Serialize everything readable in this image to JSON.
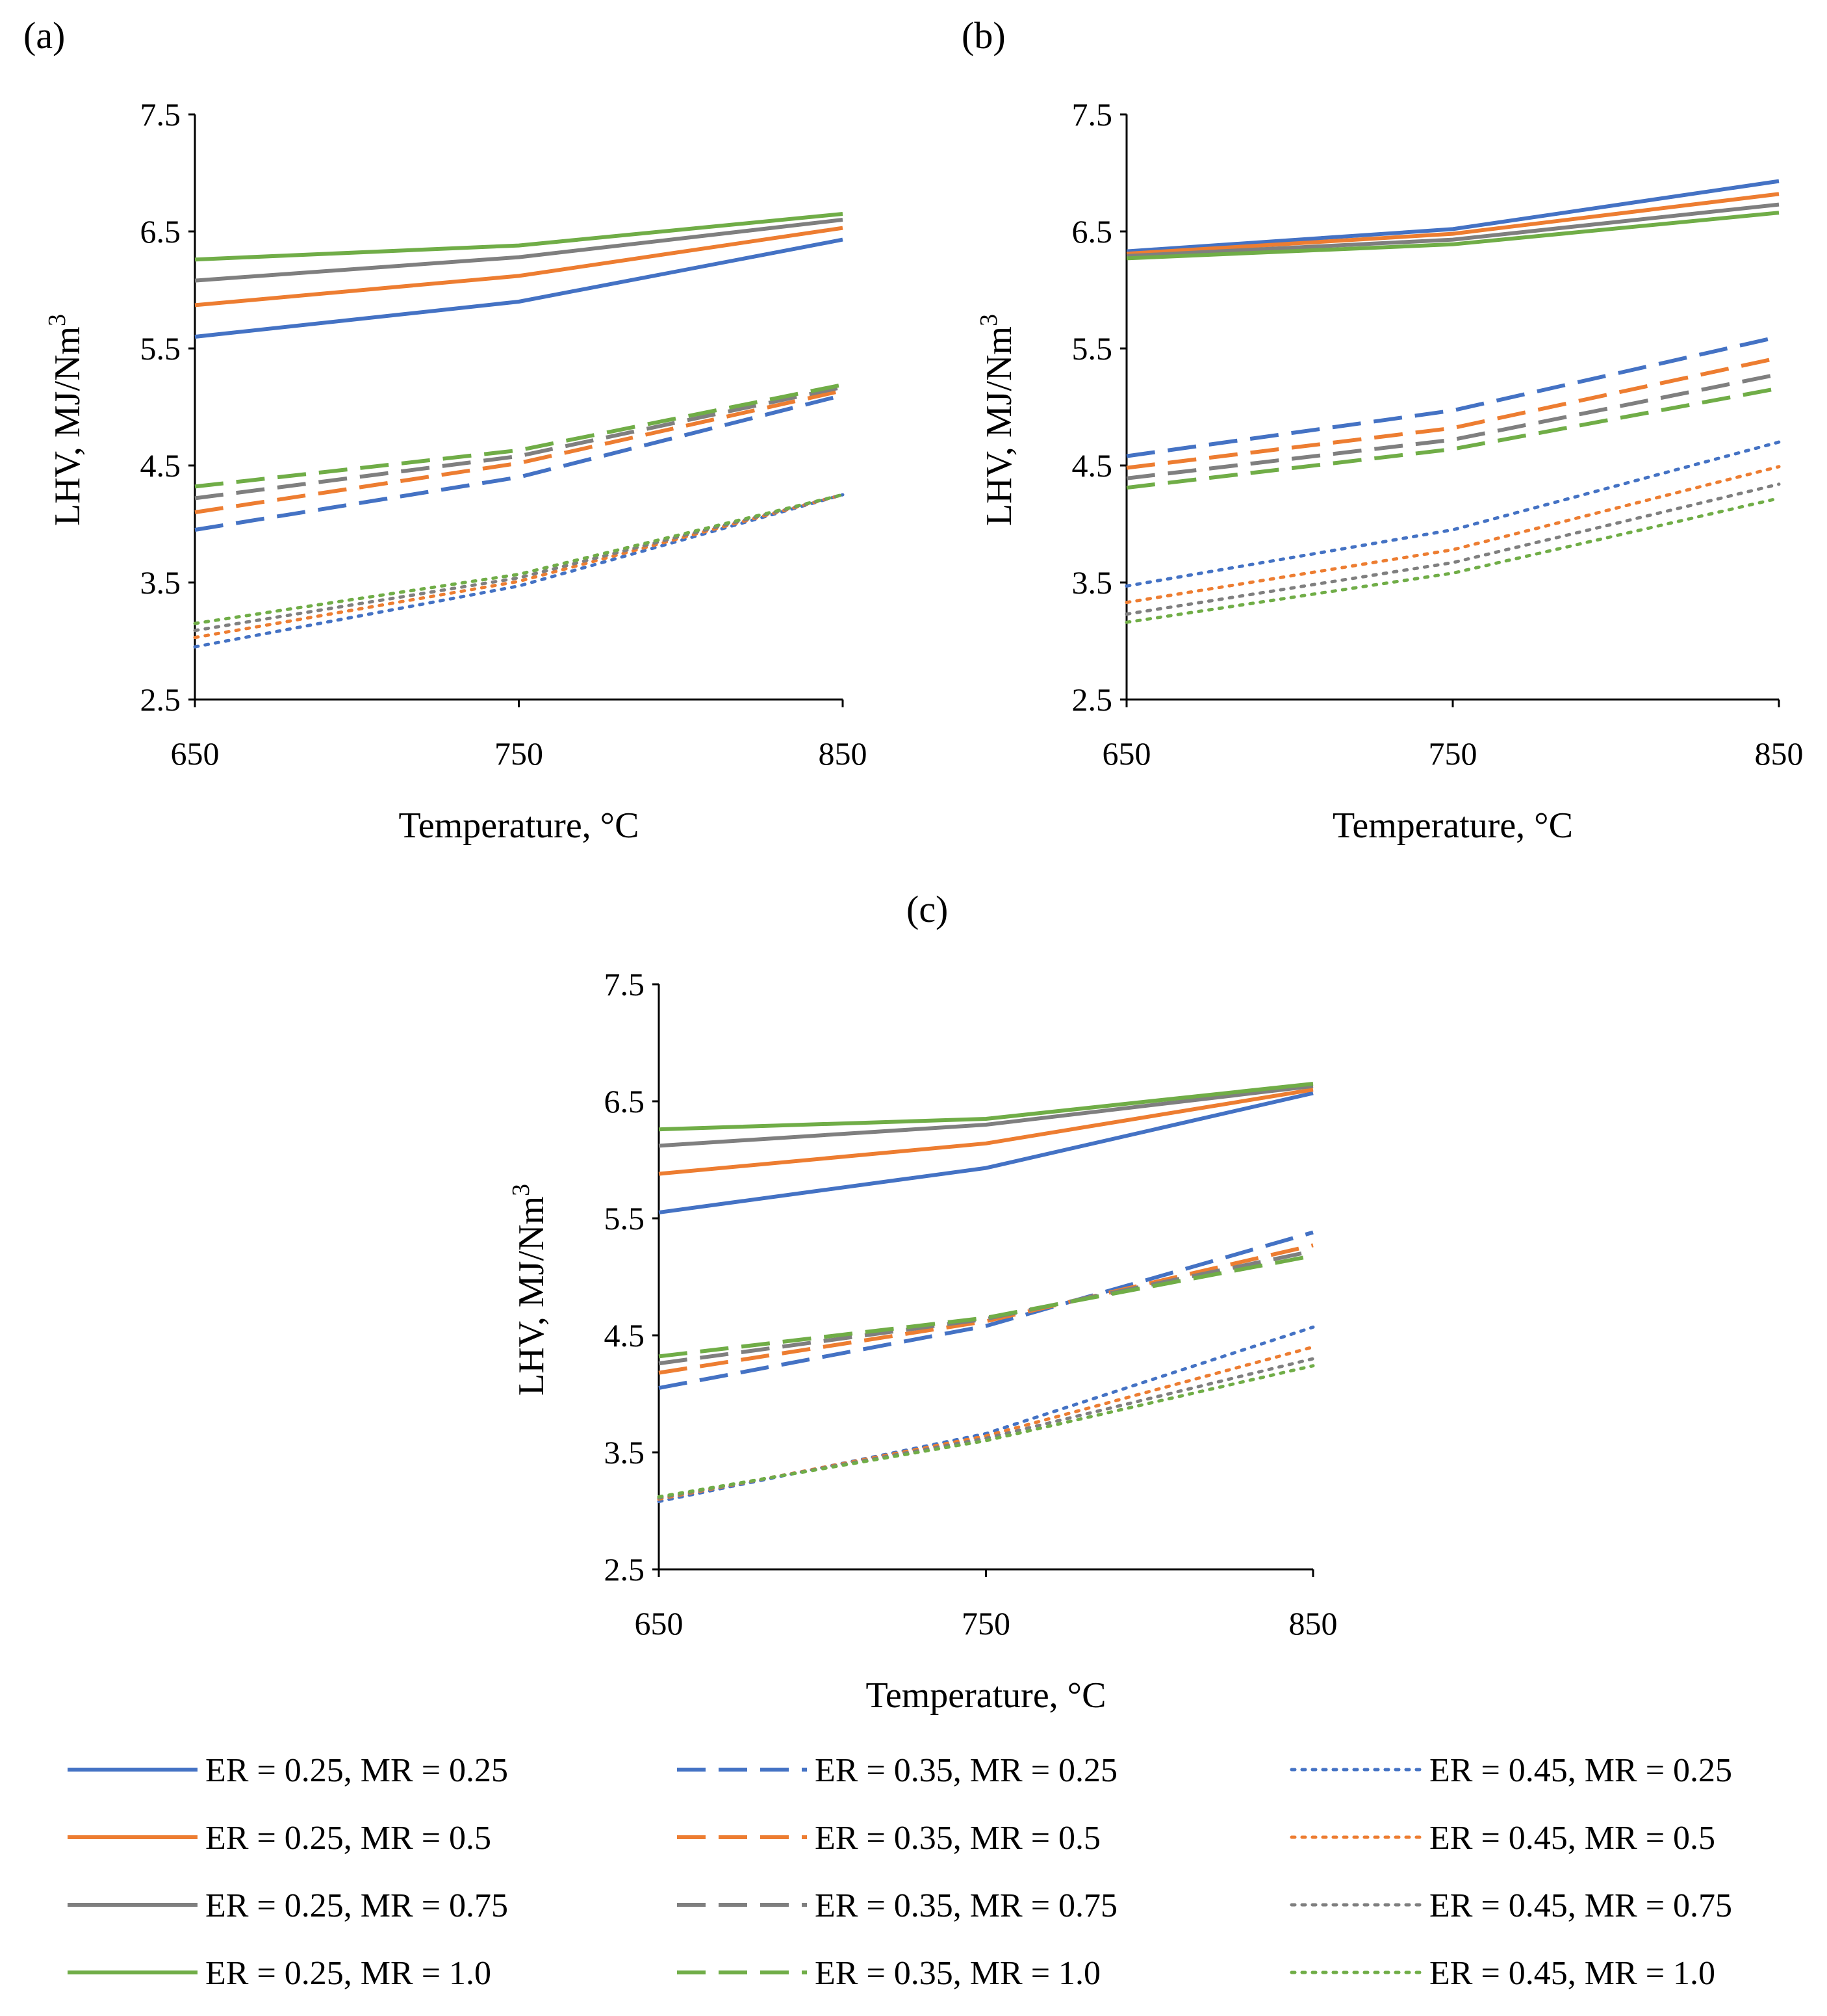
{
  "figure": {
    "legend": [
      {
        "series": 0,
        "label": "ER = 0.25, MR = 0.25"
      },
      {
        "series": 4,
        "label": "ER = 0.35, MR = 0.25"
      },
      {
        "series": 8,
        "label": "ER = 0.45, MR = 0.25"
      },
      {
        "series": 1,
        "label": "ER = 0.25, MR = 0.5"
      },
      {
        "series": 5,
        "label": "ER = 0.35, MR = 0.5"
      },
      {
        "series": 9,
        "label": "ER = 0.45, MR = 0.5"
      },
      {
        "series": 2,
        "label": "ER = 0.25, MR = 0.75"
      },
      {
        "series": 6,
        "label": "ER = 0.35, MR = 0.75"
      },
      {
        "series": 10,
        "label": "ER = 0.45, MR = 0.75"
      },
      {
        "series": 3,
        "label": "ER = 0.25, MR = 1.0"
      },
      {
        "series": 7,
        "label": "ER = 0.35, MR = 1.0"
      },
      {
        "series": 11,
        "label": "ER = 0.45, MR = 1.0"
      }
    ],
    "series_styles": [
      {
        "color": "#4472C4",
        "dash": "solid"
      },
      {
        "color": "#ED7D31",
        "dash": "solid"
      },
      {
        "color": "#7F7F7F",
        "dash": "solid"
      },
      {
        "color": "#70AD47",
        "dash": "solid"
      },
      {
        "color": "#4472C4",
        "dash": "dashed"
      },
      {
        "color": "#ED7D31",
        "dash": "dashed"
      },
      {
        "color": "#7F7F7F",
        "dash": "dashed"
      },
      {
        "color": "#70AD47",
        "dash": "dashed"
      },
      {
        "color": "#4472C4",
        "dash": "dotted"
      },
      {
        "color": "#ED7D31",
        "dash": "dotted"
      },
      {
        "color": "#7F7F7F",
        "dash": "dotted"
      },
      {
        "color": "#70AD47",
        "dash": "dotted"
      }
    ]
  },
  "chart_data": [
    {
      "panel": "(a)",
      "type": "line",
      "xlabel": "Temperature, °C",
      "ylabel": "LHV, MJ/Nm",
      "ylabel_sup": "3",
      "x": [
        650,
        750,
        850
      ],
      "xticks": [
        "650",
        "750",
        "850"
      ],
      "yticks": [
        "2.5",
        "3.5",
        "4.5",
        "5.5",
        "6.5",
        "7.5"
      ],
      "xlim": [
        650,
        850
      ],
      "ylim": [
        2.5,
        7.5
      ],
      "series": [
        {
          "name": "ER = 0.25, MR = 0.25",
          "values": [
            5.6,
            5.9,
            6.43
          ]
        },
        {
          "name": "ER = 0.25, MR = 0.5",
          "values": [
            5.87,
            6.12,
            6.53
          ]
        },
        {
          "name": "ER = 0.25, MR = 0.75",
          "values": [
            6.08,
            6.28,
            6.6
          ]
        },
        {
          "name": "ER = 0.25, MR = 1.0",
          "values": [
            6.26,
            6.38,
            6.65
          ]
        },
        {
          "name": "ER = 0.35, MR = 0.25",
          "values": [
            3.95,
            4.4,
            5.1
          ]
        },
        {
          "name": "ER = 0.35, MR = 0.5",
          "values": [
            4.1,
            4.52,
            5.14
          ]
        },
        {
          "name": "ER = 0.35, MR = 0.75",
          "values": [
            4.22,
            4.58,
            5.17
          ]
        },
        {
          "name": "ER = 0.35, MR = 1.0",
          "values": [
            4.32,
            4.63,
            5.19
          ]
        },
        {
          "name": "ER = 0.45, MR = 0.25",
          "values": [
            2.95,
            3.47,
            4.25
          ]
        },
        {
          "name": "ER = 0.45, MR = 0.5",
          "values": [
            3.03,
            3.51,
            4.25
          ]
        },
        {
          "name": "ER = 0.45, MR = 0.75",
          "values": [
            3.09,
            3.54,
            4.25
          ]
        },
        {
          "name": "ER = 0.45, MR = 1.0",
          "values": [
            3.15,
            3.57,
            4.25
          ]
        }
      ]
    },
    {
      "panel": "(b)",
      "type": "line",
      "xlabel": "Temperature, °C",
      "ylabel": "LHV, MJ/Nm",
      "ylabel_sup": "3",
      "x": [
        650,
        750,
        850
      ],
      "xticks": [
        "650",
        "750",
        "850"
      ],
      "yticks": [
        "2.5",
        "3.5",
        "4.5",
        "5.5",
        "6.5",
        "7.5"
      ],
      "xlim": [
        650,
        850
      ],
      "ylim": [
        2.5,
        7.5
      ],
      "series": [
        {
          "name": "ER = 0.25, MR = 0.25",
          "values": [
            6.33,
            6.52,
            6.93
          ]
        },
        {
          "name": "ER = 0.25, MR = 0.5",
          "values": [
            6.31,
            6.48,
            6.82
          ]
        },
        {
          "name": "ER = 0.25, MR = 0.75",
          "values": [
            6.29,
            6.43,
            6.73
          ]
        },
        {
          "name": "ER = 0.25, MR = 1.0",
          "values": [
            6.27,
            6.39,
            6.66
          ]
        },
        {
          "name": "ER = 0.35, MR = 0.25",
          "values": [
            4.58,
            4.97,
            5.6
          ]
        },
        {
          "name": "ER = 0.35, MR = 0.5",
          "values": [
            4.48,
            4.82,
            5.42
          ]
        },
        {
          "name": "ER = 0.35, MR = 0.75",
          "values": [
            4.39,
            4.72,
            5.28
          ]
        },
        {
          "name": "ER = 0.35, MR = 1.0",
          "values": [
            4.31,
            4.64,
            5.16
          ]
        },
        {
          "name": "ER = 0.45, MR = 0.25",
          "values": [
            3.47,
            3.95,
            4.7
          ]
        },
        {
          "name": "ER = 0.45, MR = 0.5",
          "values": [
            3.33,
            3.78,
            4.49
          ]
        },
        {
          "name": "ER = 0.45, MR = 0.75",
          "values": [
            3.23,
            3.67,
            4.34
          ]
        },
        {
          "name": "ER = 0.45, MR = 1.0",
          "values": [
            3.16,
            3.58,
            4.22
          ]
        }
      ]
    },
    {
      "panel": "(c)",
      "type": "line",
      "xlabel": "Temperature, °C",
      "ylabel": "LHV, MJ/Nm",
      "ylabel_sup": "3",
      "x": [
        650,
        750,
        850
      ],
      "xticks": [
        "650",
        "750",
        "850"
      ],
      "yticks": [
        "2.5",
        "3.5",
        "4.5",
        "5.5",
        "6.5",
        "7.5"
      ],
      "xlim": [
        650,
        850
      ],
      "ylim": [
        2.5,
        7.5
      ],
      "series": [
        {
          "name": "ER = 0.25, MR = 0.25",
          "values": [
            5.55,
            5.93,
            6.57
          ]
        },
        {
          "name": "ER = 0.25, MR = 0.5",
          "values": [
            5.88,
            6.14,
            6.6
          ]
        },
        {
          "name": "ER = 0.25, MR = 0.75",
          "values": [
            6.12,
            6.3,
            6.63
          ]
        },
        {
          "name": "ER = 0.25, MR = 1.0",
          "values": [
            6.26,
            6.35,
            6.65
          ]
        },
        {
          "name": "ER = 0.35, MR = 0.25",
          "values": [
            4.05,
            4.58,
            5.38
          ]
        },
        {
          "name": "ER = 0.35, MR = 0.5",
          "values": [
            4.18,
            4.62,
            5.27
          ]
        },
        {
          "name": "ER = 0.35, MR = 0.75",
          "values": [
            4.26,
            4.64,
            5.22
          ]
        },
        {
          "name": "ER = 0.35, MR = 1.0",
          "values": [
            4.32,
            4.65,
            5.18
          ]
        },
        {
          "name": "ER = 0.45, MR = 0.25",
          "values": [
            3.08,
            3.66,
            4.57
          ]
        },
        {
          "name": "ER = 0.45, MR = 0.5",
          "values": [
            3.1,
            3.64,
            4.4
          ]
        },
        {
          "name": "ER = 0.45, MR = 0.75",
          "values": [
            3.11,
            3.62,
            4.3
          ]
        },
        {
          "name": "ER = 0.45, MR = 1.0",
          "values": [
            3.12,
            3.6,
            4.24
          ]
        }
      ]
    }
  ]
}
